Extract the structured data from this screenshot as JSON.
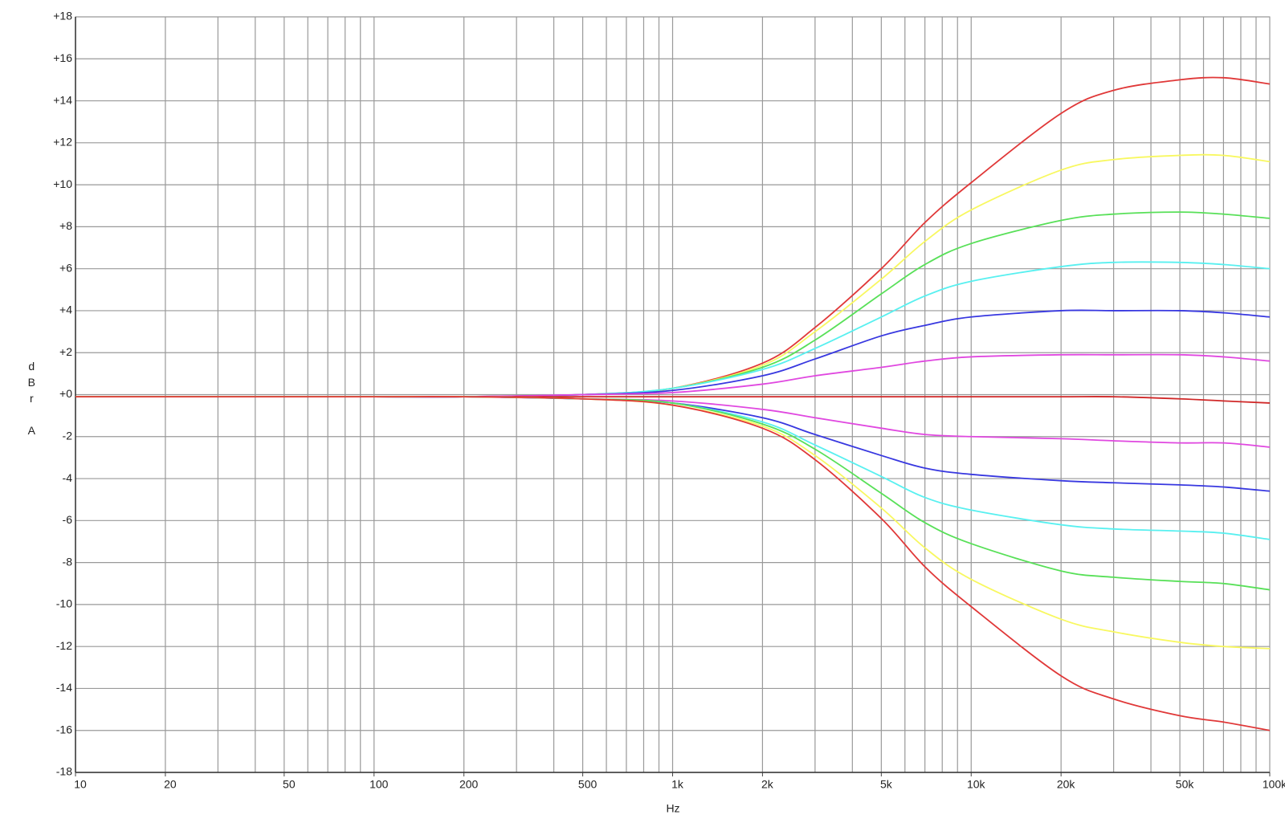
{
  "chart_data": {
    "type": "line",
    "xlabel": "Hz",
    "ylabel": "dBr A",
    "log_x": true,
    "grid": true,
    "xlim": [
      10,
      100000
    ],
    "ylim": [
      -18,
      18
    ],
    "xticks": [
      10,
      20,
      50,
      100,
      200,
      500,
      {
        "value": 1000,
        "label": "1k"
      },
      {
        "value": 2000,
        "label": "2k"
      },
      {
        "value": 5000,
        "label": "5k"
      },
      {
        "value": 10000,
        "label": "10k"
      },
      {
        "value": 20000,
        "label": "20k"
      },
      {
        "value": 50000,
        "label": "50k"
      },
      {
        "value": 100000,
        "label": "100k"
      }
    ],
    "xminor": [
      30,
      40,
      60,
      70,
      80,
      90,
      300,
      400,
      600,
      700,
      800,
      900,
      3000,
      4000,
      6000,
      7000,
      8000,
      9000,
      30000,
      40000,
      60000,
      70000,
      80000,
      90000
    ],
    "yticks": [
      {
        "value": 18,
        "label": "+18"
      },
      {
        "value": 16,
        "label": "+16"
      },
      {
        "value": 14,
        "label": "+14"
      },
      {
        "value": 12,
        "label": "+12"
      },
      {
        "value": 10,
        "label": "+10"
      },
      {
        "value": 8,
        "label": "+8"
      },
      {
        "value": 6,
        "label": "+6"
      },
      {
        "value": 4,
        "label": "+4"
      },
      {
        "value": 2,
        "label": "+2"
      },
      {
        "value": 0,
        "label": "+0"
      },
      -2,
      -4,
      -6,
      -8,
      -10,
      -12,
      -14,
      -16,
      -18
    ],
    "x": [
      10,
      20,
      50,
      100,
      200,
      500,
      1000,
      2000,
      3000,
      5000,
      7000,
      10000,
      20000,
      30000,
      50000,
      70000,
      100000
    ],
    "series": [
      {
        "color": "#e03838",
        "values": [
          -0.1,
          -0.1,
          -0.1,
          -0.1,
          -0.1,
          0,
          0.3,
          1.5,
          3.2,
          6,
          8.2,
          10.1,
          13.4,
          14.5,
          15,
          15.1,
          14.8
        ]
      },
      {
        "color": "#f8f860",
        "values": [
          -0.1,
          -0.1,
          -0.1,
          -0.1,
          -0.1,
          0,
          0.3,
          1.4,
          3,
          5.5,
          7.3,
          8.8,
          10.7,
          11.2,
          11.4,
          11.4,
          11.1
        ]
      },
      {
        "color": "#58e058",
        "values": [
          -0.1,
          -0.1,
          -0.1,
          -0.1,
          -0.1,
          0,
          0.3,
          1.3,
          2.6,
          4.8,
          6.2,
          7.2,
          8.3,
          8.6,
          8.7,
          8.6,
          8.4
        ]
      },
      {
        "color": "#58f0f0",
        "values": [
          -0.1,
          -0.1,
          -0.1,
          -0.1,
          -0.1,
          0,
          0.3,
          1.2,
          2.2,
          3.7,
          4.7,
          5.4,
          6.1,
          6.3,
          6.3,
          6.2,
          6
        ]
      },
      {
        "color": "#3838e0",
        "values": [
          -0.1,
          -0.1,
          -0.1,
          -0.1,
          -0.1,
          0,
          0.2,
          0.9,
          1.7,
          2.8,
          3.3,
          3.7,
          4,
          4,
          4,
          3.9,
          3.7
        ]
      },
      {
        "color": "#e048e0",
        "values": [
          -0.1,
          -0.1,
          -0.1,
          -0.1,
          -0.1,
          0,
          0.1,
          0.5,
          0.9,
          1.3,
          1.6,
          1.8,
          1.9,
          1.9,
          1.9,
          1.8,
          1.6
        ]
      },
      {
        "color": "#d02828",
        "values": [
          -0.1,
          -0.1,
          -0.1,
          -0.1,
          -0.1,
          -0.1,
          -0.1,
          -0.1,
          -0.1,
          -0.1,
          -0.1,
          -0.1,
          -0.1,
          -0.1,
          -0.2,
          -0.3,
          -0.4
        ]
      },
      {
        "color": "#e048e0",
        "values": [
          -0.1,
          -0.1,
          -0.1,
          -0.1,
          -0.1,
          -0.2,
          -0.3,
          -0.7,
          -1.1,
          -1.6,
          -1.9,
          -2,
          -2.1,
          -2.2,
          -2.3,
          -2.3,
          -2.5
        ]
      },
      {
        "color": "#3838e0",
        "values": [
          -0.1,
          -0.1,
          -0.1,
          -0.1,
          -0.1,
          -0.2,
          -0.4,
          -1.1,
          -1.9,
          -2.9,
          -3.5,
          -3.8,
          -4.1,
          -4.2,
          -4.3,
          -4.4,
          -4.6
        ]
      },
      {
        "color": "#58f0f0",
        "values": [
          -0.1,
          -0.1,
          -0.1,
          -0.1,
          -0.1,
          -0.2,
          -0.4,
          -1.3,
          -2.4,
          -3.9,
          -4.9,
          -5.5,
          -6.2,
          -6.4,
          -6.5,
          -6.6,
          -6.9
        ]
      },
      {
        "color": "#58e058",
        "values": [
          -0.1,
          -0.1,
          -0.1,
          -0.1,
          -0.1,
          -0.2,
          -0.4,
          -1.4,
          -2.6,
          -4.7,
          -6.1,
          -7.1,
          -8.4,
          -8.7,
          -8.9,
          -9,
          -9.3
        ]
      },
      {
        "color": "#f8f860",
        "values": [
          -0.1,
          -0.1,
          -0.1,
          -0.1,
          -0.1,
          -0.2,
          -0.5,
          -1.5,
          -2.9,
          -5.4,
          -7.3,
          -8.8,
          -10.7,
          -11.3,
          -11.8,
          -12,
          -12.1
        ]
      },
      {
        "color": "#e03838",
        "values": [
          -0.1,
          -0.1,
          -0.1,
          -0.1,
          -0.1,
          -0.2,
          -0.5,
          -1.6,
          -3.1,
          -5.9,
          -8.2,
          -10.1,
          -13.4,
          -14.5,
          -15.3,
          -15.6,
          -16
        ]
      }
    ]
  }
}
